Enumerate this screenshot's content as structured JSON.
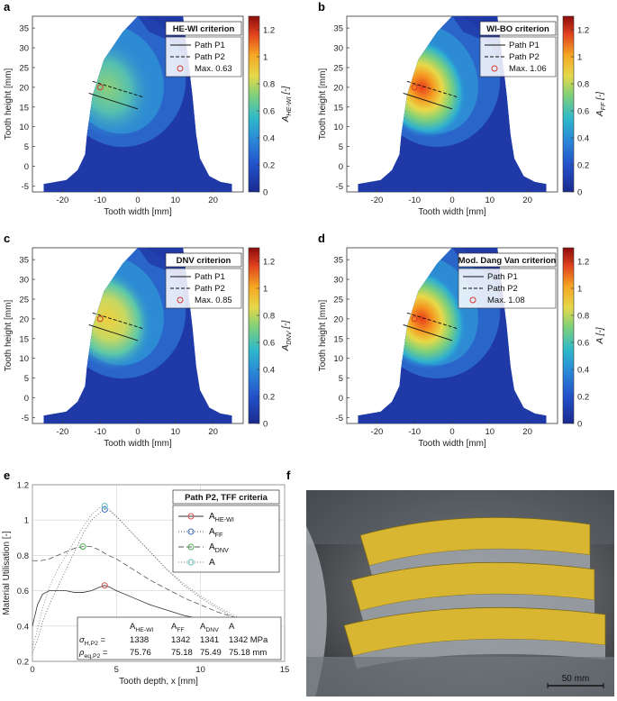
{
  "panels": [
    {
      "letter": "a",
      "legend_title": "HE-WI criterion",
      "legend_items": [
        "Path P1",
        "Path P2",
        "Max. 0.63"
      ],
      "colorbar_label": "A",
      "colorbar_sub": "HE-WI",
      "colorbar_suffix": " [-]",
      "max_value": 0.63,
      "max_point": [
        -10,
        20
      ]
    },
    {
      "letter": "b",
      "legend_title": "WI-BO criterion",
      "legend_items": [
        "Path P1",
        "Path P2",
        "Max. 1.06"
      ],
      "colorbar_label": "A",
      "colorbar_sub": "FF",
      "colorbar_suffix": " [-]",
      "max_value": 1.06,
      "max_point": [
        -10,
        20
      ]
    },
    {
      "letter": "c",
      "legend_title": "DNV criterion",
      "legend_items": [
        "Path P1",
        "Path P2",
        "Max. 0.85"
      ],
      "colorbar_label": "A",
      "colorbar_sub": "DNV",
      "colorbar_suffix": " [-]",
      "max_value": 0.85,
      "max_point": [
        -10,
        20
      ]
    },
    {
      "letter": "d",
      "legend_title": "Mod. Dang Van criterion",
      "legend_items": [
        "Path P1",
        "Path P2",
        "Max. 1.08"
      ],
      "colorbar_label": "A",
      "colorbar_sub": "",
      "colorbar_suffix": " [-]",
      "max_value": 1.08,
      "max_point": [
        -10,
        20
      ]
    }
  ],
  "contour_axes": {
    "xlabel": "Tooth width [mm]",
    "ylabel": "Tooth height [mm]",
    "xticks": [
      "-20",
      "-10",
      "0",
      "10",
      "20"
    ],
    "yticks": [
      "-5",
      "0",
      "5",
      "10",
      "15",
      "20",
      "25",
      "30",
      "35"
    ],
    "colorbar_ticks": [
      "0",
      "0.2",
      "0.4",
      "0.6",
      "0.8",
      "1",
      "1.2"
    ]
  },
  "chart_data": {
    "type": "line",
    "letter": "e",
    "title": "Path P2, TFF criteria",
    "xlabel": "Tooth depth, x [mm]",
    "ylabel": "Material Utilisation [-]",
    "xlim": [
      0,
      15
    ],
    "ylim": [
      0.2,
      1.2
    ],
    "xticks": [
      "0",
      "5",
      "10",
      "15"
    ],
    "yticks": [
      "0.2",
      "0.4",
      "0.6",
      "0.8",
      "1",
      "1.2"
    ],
    "series": [
      {
        "name": "A",
        "sub": "HE-WI",
        "color": "#d9534f",
        "dash": "",
        "max": 0.63,
        "x": [
          0,
          0.3,
          0.6,
          1,
          1.5,
          2,
          2.5,
          3,
          3.5,
          4,
          4.3,
          4.6,
          5,
          6,
          7,
          8,
          9,
          10,
          11,
          12,
          13,
          14
        ],
        "y": [
          0.4,
          0.52,
          0.58,
          0.6,
          0.6,
          0.6,
          0.59,
          0.59,
          0.6,
          0.62,
          0.63,
          0.62,
          0.6,
          0.56,
          0.52,
          0.49,
          0.46,
          0.44,
          0.42,
          0.4,
          0.38,
          0.36
        ]
      },
      {
        "name": "A",
        "sub": "FF",
        "color": "#3b6fc4",
        "dash": "1,2",
        "max": 1.06,
        "x": [
          0,
          0.3,
          0.6,
          1,
          1.5,
          2,
          2.5,
          3,
          3.5,
          4,
          4.3,
          4.6,
          5,
          6,
          7,
          8,
          9,
          10,
          11,
          12,
          13,
          14
        ],
        "y": [
          0.25,
          0.32,
          0.42,
          0.52,
          0.62,
          0.72,
          0.82,
          0.92,
          1.0,
          1.04,
          1.06,
          1.05,
          1.02,
          0.92,
          0.82,
          0.72,
          0.63,
          0.56,
          0.5,
          0.45,
          0.41,
          0.38
        ]
      },
      {
        "name": "A",
        "sub": "DNV",
        "color": "#4caf50",
        "dash": "6,3",
        "max": 0.85,
        "x": [
          0,
          0.5,
          1,
          1.5,
          2,
          2.5,
          3,
          3.5,
          4,
          4.5,
          5,
          6,
          7,
          8,
          9,
          10,
          11,
          12,
          13
        ],
        "y": [
          0.77,
          0.77,
          0.78,
          0.8,
          0.82,
          0.84,
          0.85,
          0.85,
          0.83,
          0.8,
          0.78,
          0.72,
          0.66,
          0.61,
          0.56,
          0.52,
          0.48,
          0.45,
          0.42
        ]
      },
      {
        "name": "A",
        "sub": "",
        "color": "#66c2c2",
        "dash": "1,2",
        "max": 1.08,
        "x": [
          0,
          0.3,
          0.6,
          1,
          1.5,
          2,
          2.5,
          3,
          3.5,
          4,
          4.3,
          4.6,
          5,
          6,
          7,
          8,
          9,
          10,
          11,
          12,
          13,
          14
        ],
        "y": [
          0.28,
          0.38,
          0.5,
          0.62,
          0.72,
          0.8,
          0.88,
          0.96,
          1.03,
          1.07,
          1.08,
          1.06,
          1.02,
          0.92,
          0.82,
          0.72,
          0.64,
          0.57,
          0.51,
          0.46,
          0.42,
          0.39
        ]
      }
    ],
    "table": {
      "headers": [
        "",
        "A_HE-WI",
        "A_FF",
        "A_DNV",
        "A"
      ],
      "rows": [
        {
          "label": "σ_H,P2 =",
          "values": [
            "1338",
            "1342",
            "1341",
            "1342 MPa"
          ]
        },
        {
          "label": "ρ_eq,P2 =",
          "values": [
            "75.76",
            "75.18",
            "75.49",
            "75.18 mm"
          ]
        }
      ]
    }
  },
  "photo": {
    "letter": "f",
    "scale_label": "50 mm"
  }
}
